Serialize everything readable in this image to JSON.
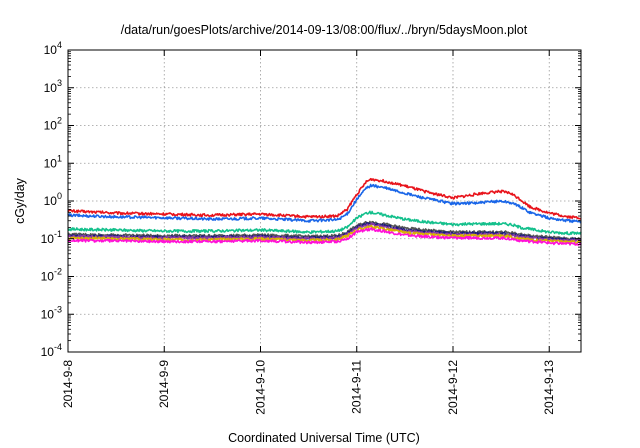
{
  "chart_data": {
    "type": "line",
    "title": "/data/run/goesPlots/archive/2014-09-13/08:00/flux/../bryn/5daysMoon.plot",
    "xlabel": "Coordinated Universal Time (UTC)",
    "ylabel": "cGy/day",
    "x_tick_labels": [
      "2014-9-8",
      "2014-9-9",
      "2014-9-10",
      "2014-9-11",
      "2014-9-12",
      "2014-9-13"
    ],
    "xlim_days": [
      0,
      5.33
    ],
    "y_scale": "log",
    "ylim": [
      0.0001,
      10000
    ],
    "y_ticks": [
      {
        "base": "10",
        "exp": "-4",
        "value": 0.0001
      },
      {
        "base": "10",
        "exp": "-3",
        "value": 0.001
      },
      {
        "base": "10",
        "exp": "-2",
        "value": 0.01
      },
      {
        "base": "10",
        "exp": "-1",
        "value": 0.1
      },
      {
        "base": "10",
        "exp": "0",
        "value": 1
      },
      {
        "base": "10",
        "exp": "1",
        "value": 10
      },
      {
        "base": "10",
        "exp": "2",
        "value": 100
      },
      {
        "base": "10",
        "exp": "3",
        "value": 1000
      },
      {
        "base": "10",
        "exp": "4",
        "value": 10000
      }
    ],
    "grid": true,
    "legend": "none",
    "series": [
      {
        "color": "#e8141c",
        "x": [
          0,
          0.5,
          1.0,
          1.5,
          2.0,
          2.5,
          2.8,
          2.9,
          3.0,
          3.1,
          3.15,
          3.3,
          3.5,
          3.7,
          4.0,
          4.3,
          4.5,
          4.6,
          4.7,
          4.8,
          5.0,
          5.2,
          5.33
        ],
        "y": [
          0.55,
          0.48,
          0.45,
          0.42,
          0.45,
          0.38,
          0.4,
          0.6,
          1.5,
          3.2,
          3.8,
          3.3,
          2.5,
          1.8,
          1.2,
          1.6,
          1.8,
          1.6,
          1.1,
          0.7,
          0.48,
          0.38,
          0.36
        ]
      },
      {
        "color": "#1a66e8",
        "x": [
          0,
          0.5,
          1.0,
          1.5,
          2.0,
          2.5,
          2.8,
          2.9,
          3.0,
          3.1,
          3.15,
          3.3,
          3.5,
          3.7,
          4.0,
          4.3,
          4.5,
          4.6,
          4.7,
          4.8,
          5.0,
          5.2,
          5.33
        ],
        "y": [
          0.42,
          0.38,
          0.36,
          0.33,
          0.35,
          0.3,
          0.32,
          0.45,
          1.1,
          2.2,
          2.6,
          2.2,
          1.6,
          1.2,
          0.85,
          0.9,
          1.0,
          0.9,
          0.7,
          0.5,
          0.35,
          0.3,
          0.28
        ]
      },
      {
        "color": "#14c08c",
        "x": [
          0,
          0.5,
          1.0,
          1.5,
          2.0,
          2.5,
          2.8,
          2.9,
          3.0,
          3.1,
          3.15,
          3.3,
          3.5,
          3.7,
          4.0,
          4.3,
          4.5,
          4.6,
          4.7,
          4.8,
          5.0,
          5.2,
          5.33
        ],
        "y": [
          0.18,
          0.17,
          0.16,
          0.16,
          0.17,
          0.15,
          0.16,
          0.2,
          0.35,
          0.48,
          0.5,
          0.42,
          0.33,
          0.28,
          0.24,
          0.25,
          0.25,
          0.24,
          0.2,
          0.18,
          0.15,
          0.14,
          0.14
        ]
      },
      {
        "color": "#555555",
        "x": [
          0,
          0.5,
          1.0,
          1.5,
          2.0,
          2.5,
          2.8,
          2.9,
          3.0,
          3.1,
          3.15,
          3.3,
          3.5,
          3.7,
          4.0,
          4.3,
          4.5,
          4.6,
          4.7,
          4.8,
          5.0,
          5.2,
          5.33
        ],
        "y": [
          0.13,
          0.125,
          0.12,
          0.12,
          0.125,
          0.115,
          0.12,
          0.15,
          0.22,
          0.27,
          0.28,
          0.24,
          0.19,
          0.17,
          0.15,
          0.15,
          0.15,
          0.145,
          0.13,
          0.12,
          0.11,
          0.1,
          0.1
        ]
      },
      {
        "color": "#1c1c7a",
        "x": [
          0,
          0.5,
          1.0,
          1.5,
          2.0,
          2.5,
          2.8,
          2.9,
          3.0,
          3.1,
          3.15,
          3.3,
          3.5,
          3.7,
          4.0,
          4.3,
          4.5,
          4.6,
          4.7,
          4.8,
          5.0,
          5.2,
          5.33
        ],
        "y": [
          0.12,
          0.115,
          0.11,
          0.11,
          0.115,
          0.105,
          0.11,
          0.14,
          0.2,
          0.25,
          0.26,
          0.22,
          0.17,
          0.155,
          0.14,
          0.14,
          0.14,
          0.135,
          0.12,
          0.11,
          0.1,
          0.095,
          0.095
        ]
      },
      {
        "color": "#8a3aa8",
        "x": [
          0,
          0.5,
          1.0,
          1.5,
          2.0,
          2.5,
          2.8,
          2.9,
          3.0,
          3.1,
          3.15,
          3.3,
          3.5,
          3.7,
          4.0,
          4.3,
          4.5,
          4.6,
          4.7,
          4.8,
          5.0,
          5.2,
          5.33
        ],
        "y": [
          0.115,
          0.11,
          0.105,
          0.105,
          0.11,
          0.1,
          0.105,
          0.13,
          0.19,
          0.23,
          0.24,
          0.2,
          0.16,
          0.145,
          0.13,
          0.13,
          0.13,
          0.125,
          0.11,
          0.105,
          0.095,
          0.09,
          0.09
        ]
      },
      {
        "color": "#d8b400",
        "x": [
          0,
          0.5,
          1.0,
          1.5,
          2.0,
          2.5,
          2.8,
          2.9,
          3.0,
          3.1,
          3.15,
          3.3,
          3.5,
          3.7,
          4.0,
          4.3,
          4.5,
          4.6,
          4.7,
          4.8,
          5.0,
          5.2,
          5.33
        ],
        "y": [
          0.105,
          0.1,
          0.095,
          0.095,
          0.1,
          0.09,
          0.095,
          0.12,
          0.17,
          0.2,
          0.21,
          0.18,
          0.145,
          0.13,
          0.12,
          0.12,
          0.12,
          0.115,
          0.1,
          0.095,
          0.088,
          0.082,
          0.082
        ]
      },
      {
        "color": "#ff10d8",
        "x": [
          0,
          0.5,
          1.0,
          1.5,
          2.0,
          2.5,
          2.8,
          2.9,
          3.0,
          3.1,
          3.15,
          3.3,
          3.5,
          3.7,
          4.0,
          4.3,
          4.5,
          4.6,
          4.7,
          4.8,
          5.0,
          5.2,
          5.33
        ],
        "y": [
          0.09,
          0.088,
          0.085,
          0.085,
          0.09,
          0.08,
          0.085,
          0.1,
          0.15,
          0.17,
          0.18,
          0.155,
          0.125,
          0.115,
          0.105,
          0.105,
          0.105,
          0.1,
          0.09,
          0.085,
          0.078,
          0.073,
          0.073
        ]
      }
    ]
  }
}
